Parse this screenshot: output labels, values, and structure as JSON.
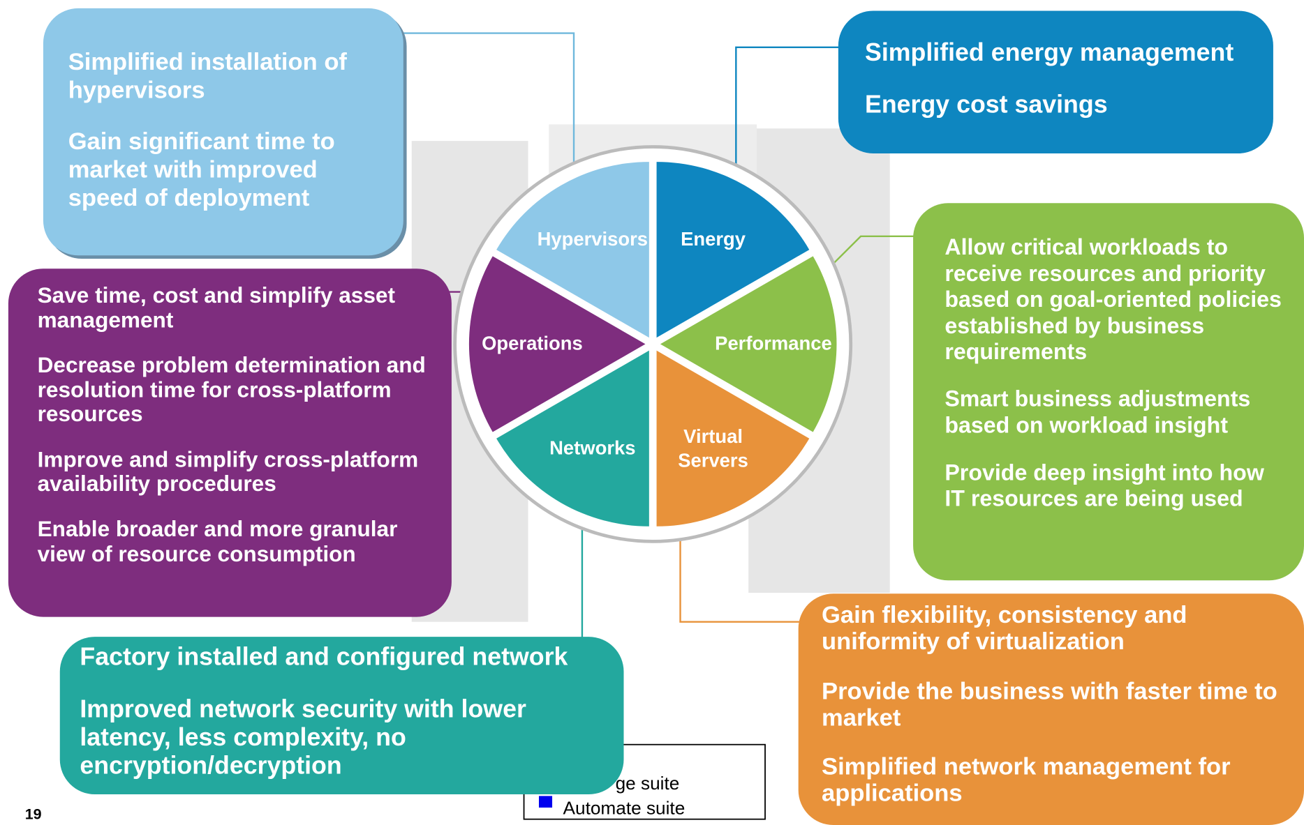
{
  "wheel": {
    "segments": [
      {
        "label": "Energy",
        "color": "#0e86c0"
      },
      {
        "label": "Performance",
        "color": "#8cc04a"
      },
      {
        "label": "Virtual Servers",
        "color": "#e8923a"
      },
      {
        "label": "Networks",
        "color": "#23a89e"
      },
      {
        "label": "Operations",
        "color": "#7e2d7e"
      },
      {
        "label": "Hypervisors",
        "color": "#8ec8e8"
      }
    ]
  },
  "boxes": [
    {
      "color": "#8ec8e8",
      "paragraphs": [
        "Simplified installation of hypervisors",
        "Gain significant time to market with improved speed of deployment"
      ]
    },
    {
      "color": "#0e86c0",
      "paragraphs": [
        "Simplified energy management",
        "Energy cost savings"
      ]
    },
    {
      "color": "#8cc04a",
      "paragraphs": [
        "Allow critical workloads to receive resources and priority based on goal-oriented policies established by business requirements",
        "Smart business adjustments based on workload insight",
        "Provide deep insight into how IT resources are being used"
      ]
    },
    {
      "color": "#e8923a",
      "paragraphs": [
        "Gain flexibility, consistency and uniformity of virtualization",
        "Provide the business with faster time to market",
        "Simplified network management for applications"
      ]
    },
    {
      "color": "#23a89e",
      "paragraphs": [
        "Factory installed and configured network",
        "Improved network security with lower latency, less complexity, no encryption/decryption"
      ]
    },
    {
      "color": "#7e2d7e",
      "paragraphs": [
        "Save time, cost and simplify asset management",
        "Decrease problem determination and resolution time for cross-platform resources",
        "Improve and simplify cross-platform availability procedures",
        "Enable broader and more granular view of resource consumption"
      ]
    }
  ],
  "legend": {
    "items": [
      "ge suite",
      "Automate suite"
    ]
  },
  "page_number": "19"
}
